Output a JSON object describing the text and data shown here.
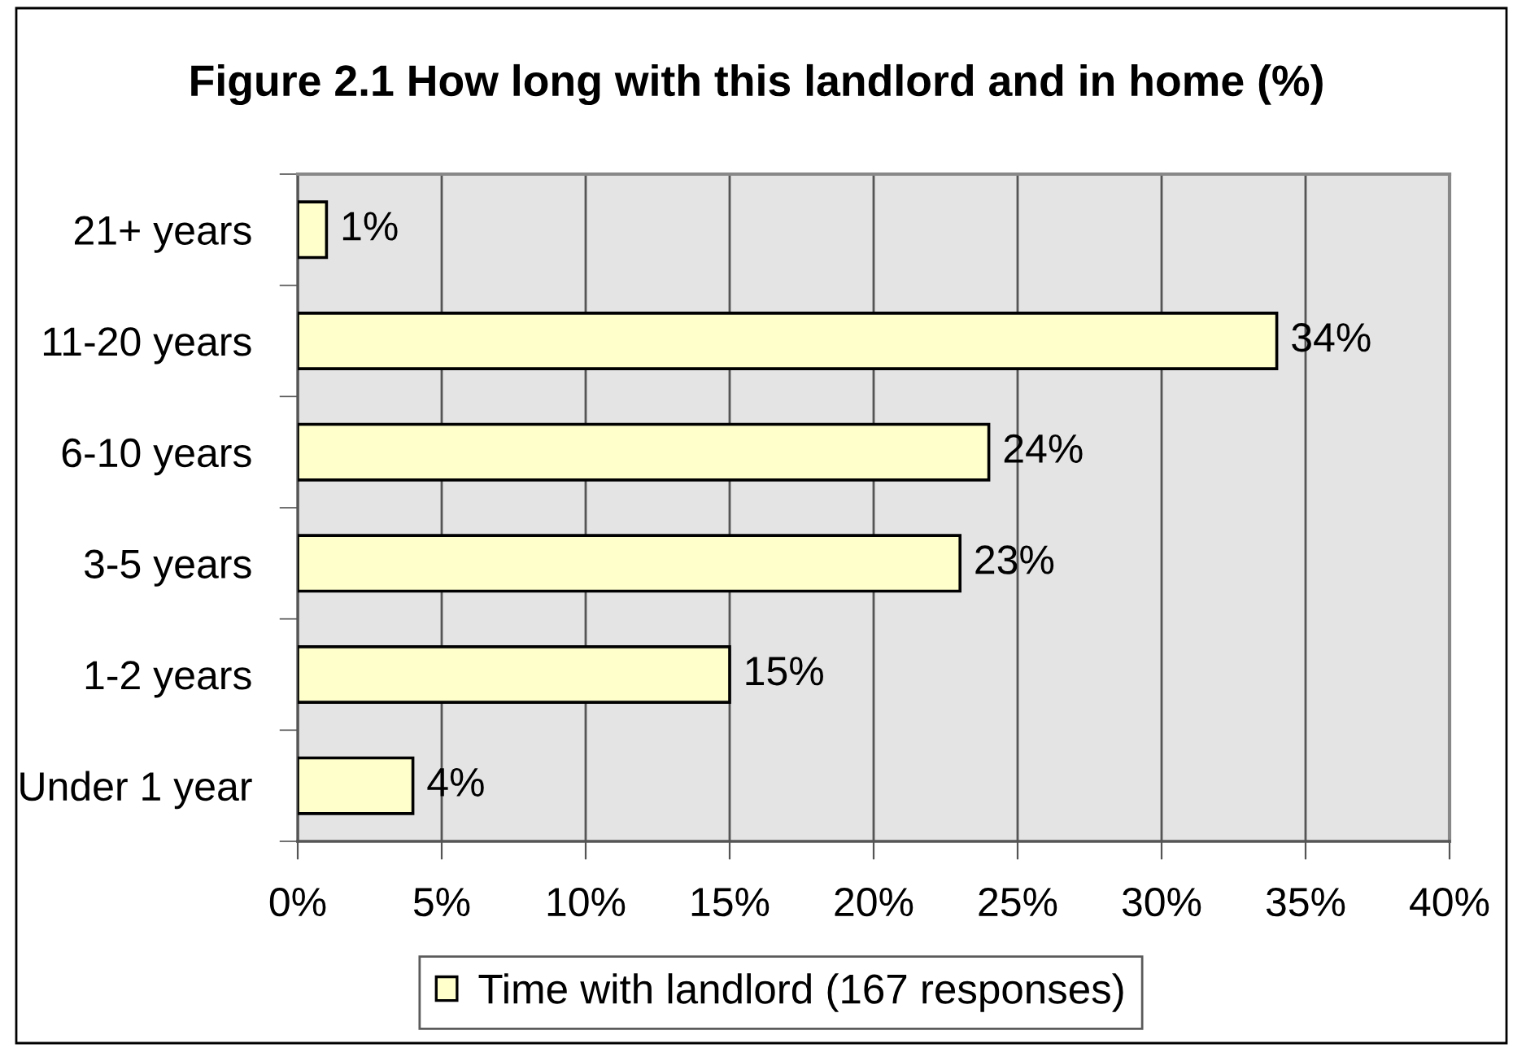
{
  "chart_data": {
    "type": "bar",
    "orientation": "horizontal",
    "title": "Figure 2.1 How long with this landlord and in home (%)",
    "categories": [
      "21+ years",
      "11-20 years",
      "6-10 years",
      "3-5 years",
      "1-2 years",
      "Under 1 year"
    ],
    "series": [
      {
        "name": "Time with landlord (167 responses)",
        "color": "#ffffcc",
        "values": [
          1,
          34,
          24,
          23,
          15,
          4
        ],
        "value_labels": [
          "1%",
          "34%",
          "24%",
          "23%",
          "15%",
          "4%"
        ]
      }
    ],
    "xlim": [
      0,
      40
    ],
    "xticks": [
      {
        "value": 0,
        "label": "0%"
      },
      {
        "value": 5,
        "label": "5%"
      },
      {
        "value": 10,
        "label": "10%"
      },
      {
        "value": 15,
        "label": "15%"
      },
      {
        "value": 20,
        "label": "20%"
      },
      {
        "value": 25,
        "label": "25%"
      },
      {
        "value": 30,
        "label": "30%"
      },
      {
        "value": 35,
        "label": "35%"
      },
      {
        "value": 40,
        "label": "40%"
      }
    ],
    "grid": "x",
    "legend": "bottom"
  }
}
